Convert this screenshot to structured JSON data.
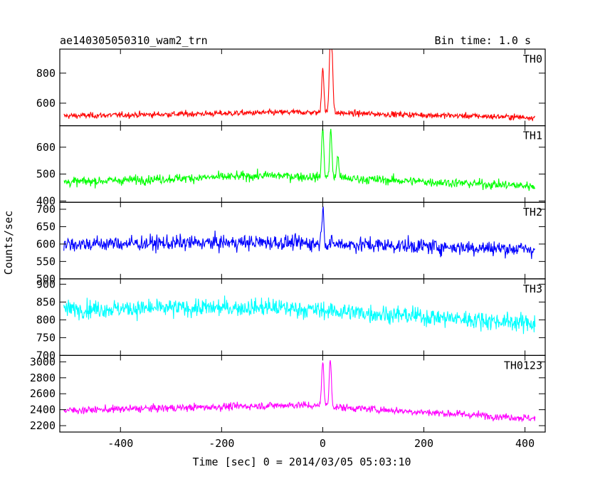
{
  "header": {
    "title": "ae140305050310_wam2_trn",
    "bin_time": "Bin time: 1.0 s"
  },
  "axes": {
    "xlabel": "Time [sec] 0 = 2014/03/05 05:03:10",
    "ylabel": "Counts/sec"
  },
  "chart_data": {
    "type": "line",
    "x_range": [
      -512,
      420
    ],
    "xlim": [
      -520,
      440
    ],
    "x_ticks": [
      -400,
      -200,
      0,
      200,
      400
    ],
    "grid": false,
    "panels": [
      {
        "name": "TH0",
        "color": "#ff0000",
        "ylim": [
          450,
          960
        ],
        "y_ticks": [
          600,
          800
        ],
        "baseline": {
          "start": 515,
          "mid": 540,
          "mid_x": -50,
          "end": 505
        },
        "noise": 25,
        "peaks": [
          {
            "x": 0,
            "value": 840
          },
          {
            "x": 15,
            "value": 960
          },
          {
            "x": 18,
            "value": 900
          }
        ]
      },
      {
        "name": "TH1",
        "color": "#00ff00",
        "ylim": [
          395,
          680
        ],
        "y_ticks": [
          400,
          500,
          600
        ],
        "baseline": {
          "start": 470,
          "mid": 495,
          "mid_x": -100,
          "end": 455
        },
        "noise": 22,
        "peaks": [
          {
            "x": 0,
            "value": 670
          },
          {
            "x": 16,
            "value": 660
          },
          {
            "x": 30,
            "value": 565
          }
        ]
      },
      {
        "name": "TH2",
        "color": "#0000ff",
        "ylim": [
          500,
          720
        ],
        "y_ticks": [
          500,
          550,
          600,
          650,
          700
        ],
        "baseline": {
          "start": 600,
          "mid": 605,
          "mid_x": -100,
          "end": 585
        },
        "noise": 28,
        "peaks": [
          {
            "x": 0,
            "value": 700
          }
        ]
      },
      {
        "name": "TH3",
        "color": "#00ffff",
        "ylim": [
          700,
          915
        ],
        "y_ticks": [
          700,
          750,
          800,
          850,
          900
        ],
        "baseline": {
          "start": 830,
          "mid": 835,
          "mid_x": -100,
          "end": 790
        },
        "noise": 32,
        "peaks": []
      },
      {
        "name": "TH0123",
        "color": "#ff00ff",
        "ylim": [
          2120,
          3080
        ],
        "y_ticks": [
          2200,
          2400,
          2600,
          2800,
          3000
        ],
        "baseline": {
          "start": 2390,
          "mid": 2460,
          "mid_x": -50,
          "end": 2290
        },
        "noise": 60,
        "peaks": [
          {
            "x": 0,
            "value": 3020
          },
          {
            "x": 15,
            "value": 3020
          }
        ]
      }
    ]
  }
}
